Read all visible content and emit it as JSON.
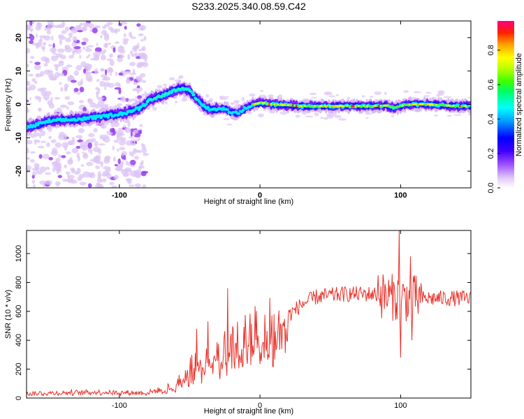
{
  "title": "S233.2025.340.08.59.C42",
  "chart_data": [
    {
      "type": "heatmap",
      "name": "spectrogram",
      "xlabel": "Height of straight line (km)",
      "ylabel": "Frequency (Hz)",
      "xlim": [
        -166,
        150
      ],
      "ylim": [
        -25,
        25
      ],
      "xticks": [
        -100,
        0,
        100
      ],
      "yticks": [
        -20,
        -10,
        0,
        10,
        20
      ],
      "ridge": {
        "heights": [
          -166,
          -150,
          -130,
          -110,
          -95,
          -85,
          -78,
          -70,
          -62,
          -55,
          -50,
          -45,
          -40,
          -35,
          -30,
          -25,
          -20,
          -15,
          -10,
          -5,
          0,
          10,
          30,
          60,
          80,
          90,
          95,
          105,
          120,
          140,
          150
        ],
        "frequency": [
          -7,
          -5,
          -4.5,
          -3.5,
          -2.5,
          -1,
          1.5,
          2.5,
          4,
          5,
          4,
          1.5,
          -0.5,
          -1.5,
          -1.5,
          -1.2,
          -2.5,
          -2.5,
          -1,
          0,
          0.5,
          0,
          -0.5,
          -0.5,
          -0.5,
          -0.3,
          -1,
          0,
          0,
          -0.5,
          -0.5
        ]
      },
      "colorbar": {
        "label": "Normalized spectral amplitude",
        "ticks": [
          0.0,
          0.2,
          0.4,
          0.6,
          0.8
        ],
        "tick_labels": [
          "0.0",
          "0.2",
          "0.4",
          "0.6",
          "0.8"
        ],
        "range": [
          0,
          0.97
        ],
        "colormap": [
          "#ffffff",
          "#e0c8f8",
          "#7f00ff",
          "#0000ff",
          "#00ffff",
          "#00ff00",
          "#ffff00",
          "#ffa000",
          "#ff0000",
          "#ff0080"
        ]
      }
    },
    {
      "type": "line",
      "name": "snr",
      "xlabel": "Height of straight line (km)",
      "ylabel": "SNR (10 * v/v)",
      "xlim": [
        -166,
        150
      ],
      "ylim": [
        0,
        1160
      ],
      "xticks": [
        -100,
        0,
        100
      ],
      "yticks": [
        0,
        200,
        400,
        600,
        800,
        1000
      ],
      "color": "#e8322a",
      "envelope": {
        "heights": [
          -166,
          -120,
          -80,
          -70,
          -60,
          -50,
          -40,
          -30,
          -20,
          -10,
          0,
          10,
          20,
          30,
          40,
          60,
          80,
          100,
          120,
          150
        ],
        "snr": [
          30,
          40,
          35,
          60,
          90,
          200,
          250,
          310,
          350,
          430,
          480,
          510,
          570,
          650,
          700,
          720,
          720,
          690,
          690,
          690
        ]
      },
      "spikes": [
        {
          "height": -23,
          "snr": 760
        },
        {
          "height": -45,
          "snr": 480
        },
        {
          "height": -37,
          "snr": 530
        },
        {
          "height": 99,
          "snr": 1160
        },
        {
          "height": 100,
          "snr": 280
        },
        {
          "height": 107,
          "snr": 980
        },
        {
          "height": 108,
          "snr": 400
        },
        {
          "height": 84,
          "snr": 850
        }
      ]
    }
  ]
}
